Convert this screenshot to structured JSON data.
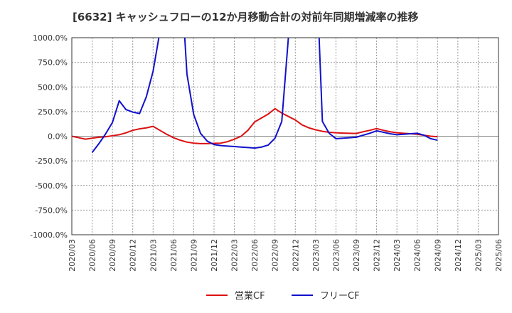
{
  "chart_data": {
    "type": "line",
    "title": "[6632]  キャッシュフローの12か月移動合計の対前年同期増減率の推移",
    "xlabel": "",
    "ylabel": "",
    "ylim": [
      -1000,
      1000
    ],
    "yticks": [
      1000,
      750,
      500,
      250,
      0,
      -250,
      -500,
      -750,
      -1000
    ],
    "ytick_labels": [
      "1000.0%",
      "750.0%",
      "500.0%",
      "250.0%",
      "0.0%",
      "-250.0%",
      "-500.0%",
      "-750.0%",
      "-1000.0%"
    ],
    "xtick_labels": [
      "2020/03",
      "2020/06",
      "2020/09",
      "2020/12",
      "2021/03",
      "2021/06",
      "2021/09",
      "2021/12",
      "2022/03",
      "2022/06",
      "2022/09",
      "2022/12",
      "2023/03",
      "2023/06",
      "2023/09",
      "2023/12",
      "2024/03",
      "2024/06",
      "2024/09",
      "2024/12",
      "2025/03",
      "2025/06"
    ],
    "grid": true,
    "legend_position": "bottom-center",
    "series": [
      {
        "name": "営業CF",
        "color": "#dd1111",
        "points": [
          [
            0,
            0
          ],
          [
            1,
            -15
          ],
          [
            2,
            -30
          ],
          [
            3,
            -20
          ],
          [
            4,
            -10
          ],
          [
            5,
            -5
          ],
          [
            6,
            5
          ],
          [
            7,
            15
          ],
          [
            8,
            35
          ],
          [
            9,
            60
          ],
          [
            10,
            75
          ],
          [
            11,
            85
          ],
          [
            12,
            100
          ],
          [
            13,
            60
          ],
          [
            14,
            20
          ],
          [
            15,
            -15
          ],
          [
            16,
            -40
          ],
          [
            17,
            -60
          ],
          [
            18,
            -70
          ],
          [
            19,
            -75
          ],
          [
            20,
            -75
          ],
          [
            21,
            -72
          ],
          [
            22,
            -70
          ],
          [
            23,
            -55
          ],
          [
            24,
            -30
          ],
          [
            25,
            0
          ],
          [
            26,
            60
          ],
          [
            27,
            145
          ],
          [
            28,
            185
          ],
          [
            29,
            225
          ],
          [
            30,
            280
          ],
          [
            31,
            235
          ],
          [
            32,
            200
          ],
          [
            33,
            165
          ],
          [
            34,
            115
          ],
          [
            35,
            85
          ],
          [
            36,
            65
          ],
          [
            37,
            50
          ],
          [
            38,
            40
          ],
          [
            39,
            35
          ],
          [
            40,
            32
          ],
          [
            41,
            30
          ],
          [
            42,
            28
          ],
          [
            43,
            45
          ],
          [
            44,
            60
          ],
          [
            45,
            78
          ],
          [
            46,
            60
          ],
          [
            47,
            45
          ],
          [
            48,
            35
          ],
          [
            49,
            30
          ],
          [
            50,
            25
          ],
          [
            51,
            20
          ],
          [
            52,
            10
          ],
          [
            53,
            0
          ],
          [
            54,
            -5
          ]
        ]
      },
      {
        "name": "フリーCF",
        "color": "#1111cc",
        "points": [
          [
            3,
            -165
          ],
          [
            4,
            -75
          ],
          [
            5,
            25
          ],
          [
            6,
            140
          ],
          [
            7,
            360
          ],
          [
            8,
            270
          ],
          [
            9,
            245
          ],
          [
            10,
            230
          ],
          [
            11,
            400
          ],
          [
            12,
            660
          ],
          [
            13,
            1060
          ],
          [
            13.5,
            1200
          ],
          [
            16.5,
            1200
          ],
          [
            17,
            630
          ],
          [
            18,
            220
          ],
          [
            19,
            30
          ],
          [
            20,
            -50
          ],
          [
            21,
            -85
          ],
          [
            22,
            -95
          ],
          [
            23,
            -100
          ],
          [
            24,
            -105
          ],
          [
            25,
            -110
          ],
          [
            26,
            -115
          ],
          [
            27,
            -120
          ],
          [
            28,
            -110
          ],
          [
            29,
            -90
          ],
          [
            30,
            -20
          ],
          [
            31,
            150
          ],
          [
            32,
            1020
          ],
          [
            32.4,
            1200
          ],
          [
            36.4,
            1200
          ],
          [
            37,
            150
          ],
          [
            38,
            30
          ],
          [
            39,
            -25
          ],
          [
            40,
            -20
          ],
          [
            41,
            -15
          ],
          [
            42,
            -10
          ],
          [
            43,
            10
          ],
          [
            44,
            30
          ],
          [
            45,
            55
          ],
          [
            46,
            40
          ],
          [
            47,
            25
          ],
          [
            48,
            15
          ],
          [
            49,
            20
          ],
          [
            50,
            25
          ],
          [
            51,
            30
          ],
          [
            52,
            10
          ],
          [
            53,
            -25
          ],
          [
            54,
            -40
          ]
        ]
      }
    ]
  }
}
